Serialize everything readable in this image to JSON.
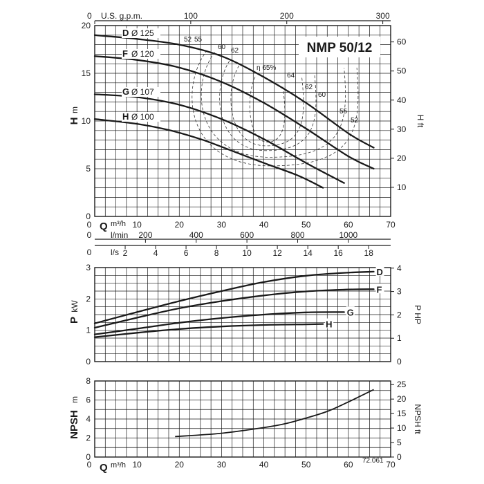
{
  "chart_data": [
    {
      "type": "line",
      "panel": "head",
      "model_label": "NMP 50/12",
      "ylabel": "H",
      "ylabel_unit": "m",
      "y2label": "H ft",
      "xlabel": "Q",
      "xlabel_unit": "m³/h",
      "xlim": [
        0,
        70
      ],
      "ylim": [
        0,
        20
      ],
      "x_ticks": [
        0,
        10,
        20,
        30,
        40,
        50,
        60,
        70
      ],
      "y_ticks": [
        5,
        10,
        15,
        20
      ],
      "y_tick_zero": "0",
      "y2_ticks": [
        10,
        20,
        30,
        40,
        50,
        60
      ],
      "top_axis": {
        "label": "U.S. g.p.m.",
        "zero": "0",
        "ticks": [
          100,
          200,
          300
        ]
      },
      "lmin_axis": {
        "label": "l/min",
        "zero": "0",
        "ticks": [
          200,
          400,
          600,
          800,
          1000
        ]
      },
      "ls_axis": {
        "label": "l/s",
        "zero": "0",
        "ticks": [
          2,
          4,
          6,
          8,
          10,
          12,
          14,
          16,
          18
        ]
      },
      "grid": true,
      "series": [
        {
          "name": "D",
          "diameter_text": "Ø 125",
          "x": [
            0,
            10,
            20,
            30,
            40,
            50,
            60,
            66
          ],
          "y": [
            19.0,
            18.6,
            18.0,
            16.8,
            14.6,
            11.9,
            8.7,
            7.2
          ]
        },
        {
          "name": "F",
          "diameter_text": "Ø 120",
          "x": [
            0,
            10,
            20,
            30,
            40,
            50,
            60,
            66
          ],
          "y": [
            16.8,
            16.4,
            15.6,
            14.1,
            11.9,
            9.2,
            6.3,
            5.0
          ]
        },
        {
          "name": "G",
          "diameter_text": "Ø 107",
          "x": [
            0,
            10,
            20,
            30,
            40,
            50,
            59
          ],
          "y": [
            12.8,
            12.5,
            11.7,
            10.2,
            8.1,
            5.6,
            3.5
          ]
        },
        {
          "name": "H",
          "diameter_text": "Ø 100",
          "x": [
            0,
            10,
            18,
            25,
            30,
            40,
            48,
            54
          ],
          "y": [
            10.2,
            9.7,
            9.0,
            8.1,
            7.3,
            5.6,
            4.3,
            3.0
          ]
        }
      ],
      "efficiency_curves": [
        {
          "label": "52",
          "label_right": "52",
          "left_x": 21.5,
          "right_x": 62,
          "bottom_y": 5.3,
          "top_y": 17.4
        },
        {
          "label": "55",
          "label_right": "55",
          "left_x": 24,
          "right_x": 59,
          "bottom_y": 6.2,
          "top_y": 17.2
        },
        {
          "label": "60",
          "label_right": "60",
          "left_x": 29,
          "right_x": 52,
          "bottom_y": 6.9,
          "top_y": 16.3
        },
        {
          "label": "62",
          "label_right": "62",
          "left_x": 32,
          "right_x": 49,
          "bottom_y": 7.4,
          "top_y": 15.8
        },
        {
          "label": "η 65%",
          "label_right": "64",
          "left_x": 37,
          "right_x": 44.5,
          "bottom_y": 7.8,
          "top_y": 14.6
        }
      ]
    },
    {
      "type": "line",
      "panel": "power",
      "ylabel": "P",
      "ylabel_unit": "kW",
      "y2label": "P HP",
      "xlim": [
        0,
        70
      ],
      "ylim": [
        0,
        3
      ],
      "y_ticks": [
        0,
        1,
        2,
        3
      ],
      "y2_ticks": [
        1,
        2,
        3,
        4
      ],
      "grid": true,
      "series": [
        {
          "name": "D",
          "x": [
            0,
            10,
            20,
            30,
            40,
            50,
            60,
            66
          ],
          "y": [
            1.22,
            1.58,
            1.93,
            2.25,
            2.54,
            2.74,
            2.84,
            2.87
          ]
        },
        {
          "name": "F",
          "x": [
            0,
            10,
            20,
            30,
            40,
            50,
            60,
            66
          ],
          "y": [
            1.08,
            1.4,
            1.7,
            1.93,
            2.11,
            2.24,
            2.3,
            2.31
          ]
        },
        {
          "name": "G",
          "x": [
            0,
            10,
            20,
            30,
            40,
            50,
            59
          ],
          "y": [
            0.87,
            1.05,
            1.24,
            1.39,
            1.5,
            1.57,
            1.58
          ]
        },
        {
          "name": "H",
          "x": [
            0,
            10,
            20,
            30,
            40,
            50,
            54
          ],
          "y": [
            0.78,
            0.92,
            1.04,
            1.12,
            1.17,
            1.19,
            1.2
          ]
        }
      ]
    },
    {
      "type": "line",
      "panel": "npsh",
      "ylabel": "NPSH",
      "ylabel_unit": "m",
      "y2label": "NPSH ft",
      "xlabel": "Q",
      "xlabel_unit": "m³/h",
      "xlim": [
        0,
        70
      ],
      "ylim": [
        0,
        8
      ],
      "x_ticks": [
        0,
        10,
        20,
        30,
        40,
        50,
        60,
        70
      ],
      "y_ticks": [
        0,
        2,
        4,
        6,
        8
      ],
      "y2_ticks": [
        0,
        5,
        10,
        15,
        20,
        25
      ],
      "grid": true,
      "footnote": "72.061",
      "series": [
        {
          "name": "NPSH",
          "x": [
            19,
            30,
            40,
            45,
            50,
            55,
            60,
            66
          ],
          "y": [
            2.15,
            2.5,
            3.1,
            3.5,
            4.1,
            4.8,
            5.8,
            7.1
          ]
        }
      ]
    }
  ]
}
